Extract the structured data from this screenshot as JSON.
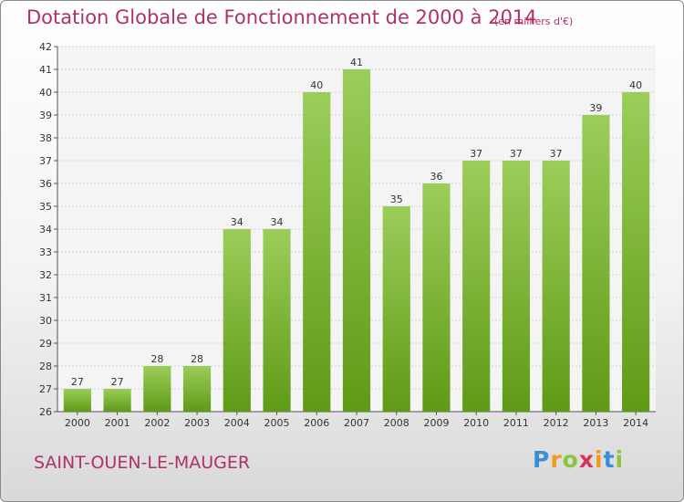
{
  "chart_data": {
    "type": "bar",
    "title": "Dotation Globale de Fonctionnement de 2000 à 2014",
    "subtitle": "(en milliers d'€)",
    "categories": [
      "2000",
      "2001",
      "2002",
      "2003",
      "2004",
      "2005",
      "2006",
      "2007",
      "2008",
      "2009",
      "2010",
      "2011",
      "2012",
      "2013",
      "2014"
    ],
    "values": [
      27,
      27,
      28,
      28,
      34,
      34,
      40,
      41,
      35,
      36,
      37,
      37,
      37,
      39,
      40
    ],
    "ylim": [
      26,
      42
    ],
    "yticks": [
      26,
      27,
      28,
      29,
      30,
      31,
      32,
      33,
      34,
      35,
      36,
      37,
      38,
      39,
      40,
      41,
      42
    ],
    "grid": true,
    "bar_color": "#7cb82f"
  },
  "footer": {
    "location": "SAINT-OUEN-LE-MAUGER",
    "logo_text": "Proxiti"
  }
}
